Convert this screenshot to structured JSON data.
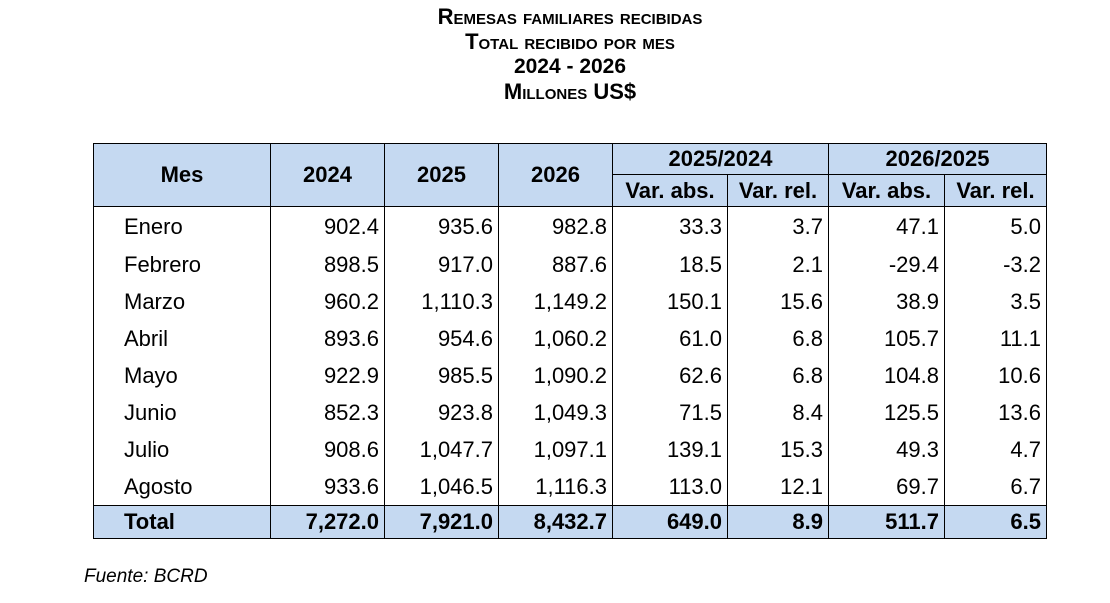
{
  "titles": {
    "line1": "Remesas familiares recibidas",
    "line2": "Total recibido por mes",
    "line3": "2024 - 2026",
    "line4": "Millones US$"
  },
  "table": {
    "headers": {
      "mes": "Mes",
      "y2024": "2024",
      "y2025": "2025",
      "y2026": "2026",
      "group1": "2025/2024",
      "group2": "2026/2025",
      "var_abs": "Var. abs.",
      "var_rel": "Var. rel."
    },
    "rows": [
      [
        "Enero",
        "902.4",
        "935.6",
        "982.8",
        "33.3",
        "3.7",
        "47.1",
        "5.0"
      ],
      [
        "Febrero",
        "898.5",
        "917.0",
        "887.6",
        "18.5",
        "2.1",
        "-29.4",
        "-3.2"
      ],
      [
        "Marzo",
        "960.2",
        "1,110.3",
        "1,149.2",
        "150.1",
        "15.6",
        "38.9",
        "3.5"
      ],
      [
        "Abril",
        "893.6",
        "954.6",
        "1,060.2",
        "61.0",
        "6.8",
        "105.7",
        "11.1"
      ],
      [
        "Mayo",
        "922.9",
        "985.5",
        "1,090.2",
        "62.6",
        "6.8",
        "104.8",
        "10.6"
      ],
      [
        "Junio",
        "852.3",
        "923.8",
        "1,049.3",
        "71.5",
        "8.4",
        "125.5",
        "13.6"
      ],
      [
        "Julio",
        "908.6",
        "1,047.7",
        "1,097.1",
        "139.1",
        "15.3",
        "49.3",
        "4.7"
      ],
      [
        "Agosto",
        "933.6",
        "1,046.5",
        "1,116.3",
        "113.0",
        "12.1",
        "69.7",
        "6.7"
      ]
    ],
    "total": [
      "Total",
      "7,272.0",
      "7,921.0",
      "8,432.7",
      "649.0",
      "8.9",
      "511.7",
      "6.5"
    ]
  },
  "source": "Fuente: BCRD"
}
